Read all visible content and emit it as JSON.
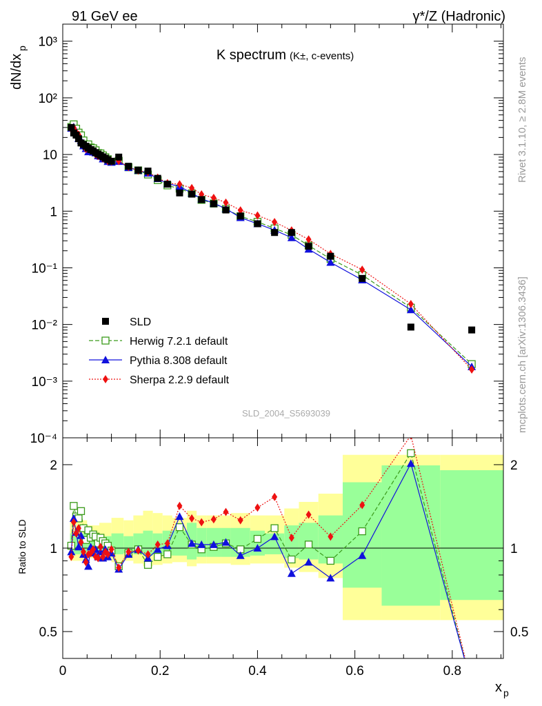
{
  "header": {
    "left": "91 GeV ee",
    "right": "γ*/Z (Hadronic)"
  },
  "side_text": {
    "rivet": "Rivet 3.1.10, ≥ 2.8M events",
    "mcplots": "mcplots.cern.ch [arXiv:1306.3436]"
  },
  "chart_data": {
    "type": "line",
    "title": "K spectrum",
    "subtitle": "(K±, c-events)",
    "analysis_id": "SLD_2004_S5693039",
    "xlabel": "x",
    "xlabel_sub": "p",
    "ylabel": "dN/dx",
    "ylabel_sub": "p",
    "ratio_ylabel": "Ratio to SLD",
    "x_ticks": [
      "0",
      "0.2",
      "0.4",
      "0.6",
      "0.8"
    ],
    "y_ticks": [
      "10⁻⁴",
      "10⁻³",
      "10⁻²",
      "10⁻¹",
      "1",
      "10",
      "10²",
      "10³"
    ],
    "ratio_ticks": [
      "0.5",
      "1",
      "2"
    ],
    "xlim": [
      0,
      0.905
    ],
    "ylim": [
      0.0001,
      2000
    ],
    "ylog": true,
    "ratio_ylim": [
      0.4,
      2.5
    ],
    "ratio_log": true,
    "legend_position": "lower-left",
    "reference": {
      "name": "SLD",
      "x": [
        0.0175,
        0.0225,
        0.0275,
        0.0325,
        0.0375,
        0.0425,
        0.0475,
        0.0525,
        0.0575,
        0.0625,
        0.0675,
        0.0725,
        0.0775,
        0.0825,
        0.0875,
        0.0925,
        0.1,
        0.115,
        0.135,
        0.155,
        0.175,
        0.195,
        0.215,
        0.24,
        0.265,
        0.285,
        0.31,
        0.335,
        0.365,
        0.4,
        0.435,
        0.47,
        0.505,
        0.55,
        0.615,
        0.715,
        0.84
      ],
      "y": [
        30,
        24,
        22,
        19,
        16,
        15,
        14,
        13,
        12.2,
        11.5,
        10.8,
        10.2,
        9.6,
        9.1,
        8.6,
        8.1,
        7.6,
        9.0,
        6.2,
        5.3,
        5.1,
        3.8,
        3.0,
        2.1,
        2.0,
        1.6,
        1.35,
        1.05,
        0.82,
        0.6,
        0.42,
        0.42,
        0.24,
        0.16,
        0.065,
        0.009,
        0.008
      ],
      "band_edges": [
        0.015,
        0.05,
        0.075,
        0.1,
        0.125,
        0.145,
        0.165,
        0.185,
        0.205,
        0.225,
        0.255,
        0.275,
        0.295,
        0.325,
        0.345,
        0.385,
        0.415,
        0.455,
        0.485,
        0.525,
        0.575,
        0.655,
        0.775,
        0.905
      ],
      "band_inner": [
        0.05,
        0.03,
        0.04,
        0.05,
        0.04,
        0.05,
        0.06,
        0.05,
        0.06,
        0.06,
        0.09,
        0.07,
        0.07,
        0.07,
        0.07,
        0.06,
        0.05,
        0.08,
        0.09,
        0.12,
        0.28,
        0.38,
        0.35
      ],
      "band_outer": [
        0.1,
        0.08,
        0.09,
        0.11,
        0.1,
        0.12,
        0.14,
        0.13,
        0.12,
        0.11,
        0.14,
        0.12,
        0.12,
        0.12,
        0.13,
        0.12,
        0.12,
        0.15,
        0.18,
        0.22,
        0.45,
        0.45,
        0.45
      ]
    },
    "series": [
      {
        "name": "Herwig 7.2.1 default",
        "color": "#3a9a1a",
        "dash": "6,3",
        "marker": "open-square",
        "x": [
          0.0175,
          0.0225,
          0.0275,
          0.0325,
          0.0375,
          0.0425,
          0.0475,
          0.0525,
          0.0575,
          0.0625,
          0.0675,
          0.0725,
          0.0775,
          0.0825,
          0.0875,
          0.0925,
          0.1,
          0.115,
          0.135,
          0.155,
          0.175,
          0.195,
          0.215,
          0.24,
          0.265,
          0.285,
          0.31,
          0.335,
          0.365,
          0.4,
          0.435,
          0.47,
          0.505,
          0.55,
          0.615,
          0.715,
          0.84
        ],
        "ratio": [
          1.02,
          1.42,
          1.3,
          1.28,
          1.36,
          1.18,
          1.07,
          1.16,
          1.09,
          1.12,
          1.1,
          1.04,
          1.09,
          1.06,
          1.04,
          1.02,
          0.98,
          0.86,
          0.96,
          0.99,
          0.87,
          0.93,
          0.95,
          1.19,
          1.03,
          0.99,
          1.01,
          1.04,
          0.99,
          1.08,
          1.18,
          0.91,
          1.03,
          0.9,
          1.15,
          2.2,
          0.25
        ]
      },
      {
        "name": "Pythia 8.308 default",
        "color": "#1010dd",
        "dash": "",
        "marker": "filled-triangle",
        "x": [
          0.0175,
          0.0225,
          0.0275,
          0.0325,
          0.0375,
          0.0425,
          0.0475,
          0.0525,
          0.0575,
          0.0625,
          0.0675,
          0.0725,
          0.0775,
          0.0825,
          0.0875,
          0.0925,
          0.1,
          0.115,
          0.135,
          0.155,
          0.175,
          0.195,
          0.215,
          0.24,
          0.265,
          0.285,
          0.31,
          0.335,
          0.365,
          0.4,
          0.435,
          0.47,
          0.505,
          0.55,
          0.615,
          0.715,
          0.84
        ],
        "ratio": [
          0.97,
          1.28,
          1.14,
          1.01,
          1.11,
          0.95,
          0.91,
          0.86,
          1.01,
          0.96,
          0.99,
          0.93,
          0.97,
          0.92,
          0.99,
          0.93,
          0.96,
          0.84,
          0.95,
          0.99,
          0.92,
          0.99,
          1.02,
          1.3,
          1.04,
          1.03,
          1.03,
          1.05,
          0.94,
          1.0,
          1.1,
          0.81,
          0.89,
          0.78,
          0.94,
          2.02,
          0.2
        ]
      },
      {
        "name": "Sherpa 2.2.9 default",
        "color": "#ee1111",
        "dash": "2,2",
        "marker": "filled-diamond",
        "x": [
          0.0175,
          0.0225,
          0.0275,
          0.0325,
          0.0375,
          0.0425,
          0.0475,
          0.0525,
          0.0575,
          0.0625,
          0.0675,
          0.0725,
          0.0775,
          0.0825,
          0.0875,
          0.0925,
          0.1,
          0.115,
          0.135,
          0.155,
          0.175,
          0.195,
          0.215,
          0.24,
          0.265,
          0.285,
          0.31,
          0.335,
          0.365,
          0.4,
          0.435,
          0.47,
          0.505,
          0.55,
          0.615,
          0.715,
          0.84
        ],
        "ratio": [
          0.93,
          1.24,
          1.13,
          1.18,
          1.05,
          0.97,
          0.89,
          0.95,
          0.96,
          0.99,
          0.93,
          0.92,
          1.01,
          0.93,
          0.97,
          0.95,
          0.99,
          0.85,
          0.97,
          0.98,
          0.95,
          1.03,
          1.04,
          1.42,
          1.28,
          1.24,
          1.27,
          1.35,
          1.26,
          1.4,
          1.53,
          1.09,
          1.32,
          1.1,
          1.43,
          2.55,
          0.25
        ]
      }
    ],
    "ref_line": 1
  }
}
